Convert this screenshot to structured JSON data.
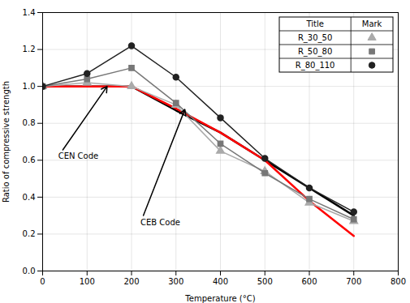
{
  "chart_data": {
    "type": "line",
    "xlabel": "Temperature (°C)",
    "ylabel": "Ratio of compressive strength",
    "xlim": [
      0,
      800
    ],
    "ylim": [
      0.0,
      1.4
    ],
    "xticks": [
      0,
      100,
      200,
      300,
      400,
      500,
      600,
      700,
      800
    ],
    "yticks": [
      {
        "value": 0.0,
        "label": "0.0"
      },
      0.2,
      0.4,
      0.6,
      0.8,
      {
        "value": 1.0,
        "label": "1.0"
      },
      1.2,
      1.4
    ],
    "grid": true,
    "legend": "upper right",
    "legend_columns": [
      "Title",
      "Mark"
    ],
    "series": [
      {
        "name": "R_30_50",
        "color": "#aaaaaa",
        "marker": "triangle",
        "x": [
          0,
          100,
          200,
          300,
          400,
          500,
          600,
          700
        ],
        "values": [
          1.0,
          1.02,
          1.0,
          0.9,
          0.65,
          0.54,
          0.37,
          0.27
        ]
      },
      {
        "name": "R_50_80",
        "color": "#777777",
        "marker": "square",
        "x": [
          0,
          100,
          200,
          300,
          400,
          500,
          600,
          700
        ],
        "values": [
          1.0,
          1.04,
          1.1,
          0.91,
          0.69,
          0.53,
          0.39,
          0.28
        ]
      },
      {
        "name": "R_80_110",
        "color": "#222222",
        "marker": "circle",
        "x": [
          0,
          100,
          200,
          300,
          400,
          500,
          600,
          700
        ],
        "values": [
          1.0,
          1.07,
          1.22,
          1.05,
          0.83,
          0.61,
          0.45,
          0.32
        ]
      },
      {
        "name": "CEN Code",
        "color": "#000000",
        "x": [
          0,
          200,
          300,
          400,
          500,
          600,
          700
        ],
        "values": [
          1.0,
          1.0,
          0.87,
          0.75,
          0.6,
          0.45,
          0.3
        ]
      },
      {
        "name": "CEB Code",
        "color": "#ff0000",
        "x": [
          0,
          200,
          300,
          400,
          500,
          600,
          700
        ],
        "values": [
          1.0,
          1.0,
          0.88,
          0.75,
          0.6,
          0.38,
          0.19
        ]
      }
    ],
    "annotations": [
      {
        "text": "CEN Code",
        "x": 35,
        "y": 0.62,
        "arrow_x": 145,
        "arrow_y": 1.0
      },
      {
        "text": "CEB Code",
        "x": 220,
        "y": 0.26,
        "arrow_x": 320,
        "arrow_y": 0.875
      }
    ]
  }
}
